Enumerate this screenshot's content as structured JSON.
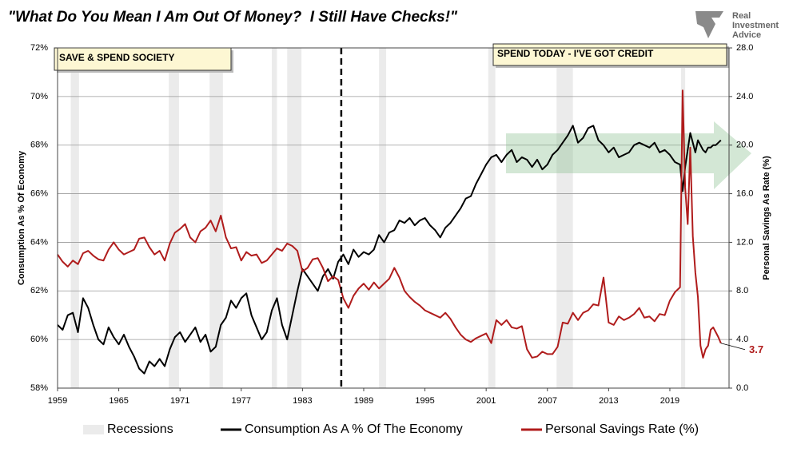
{
  "chart_data": {
    "type": "line",
    "title": "\"What Do You Mean I Am Out Of Money?  I Still Have Checks!\"",
    "logo": [
      "Real",
      "Investment",
      "Advice"
    ],
    "y_label": "Consumption As % Of Economy",
    "y2_label": "Personal Savings As Rate (%)",
    "annotations": [
      "SAVE & SPEND SOCIETY",
      "SPEND TODAY - I'VE GOT CREDIT"
    ],
    "divider_x": 1986.8,
    "xlim": [
      1959,
      2024.8
    ],
    "xticks": [
      1959,
      1965,
      1971,
      1977,
      1983,
      1989,
      1995,
      2001,
      2007,
      2013,
      2019
    ],
    "ylim": [
      58,
      72
    ],
    "yticks": [
      {
        "value": 58,
        "label": "58%"
      },
      {
        "value": 60,
        "label": "60%"
      },
      {
        "value": 62,
        "label": "62%"
      },
      {
        "value": 64,
        "label": "64%"
      },
      {
        "value": 66,
        "label": "66%"
      },
      {
        "value": 68,
        "label": "68%"
      },
      {
        "value": 70,
        "label": "70%"
      },
      {
        "value": 72,
        "label": "72%"
      }
    ],
    "y2lim": [
      0,
      28
    ],
    "y2ticks": [
      {
        "value": 0,
        "label": "0.0"
      },
      {
        "value": 4,
        "label": "4.0"
      },
      {
        "value": 8,
        "label": "8.0"
      },
      {
        "value": 12,
        "label": "12.0"
      },
      {
        "value": 16,
        "label": "16.0"
      },
      {
        "value": 20,
        "label": "20.0"
      },
      {
        "value": 24,
        "label": "24.0"
      },
      {
        "value": 28,
        "label": "28.0"
      }
    ],
    "grid": true,
    "legend": "bottom",
    "recessions": {
      "name": "Recessions",
      "color": "#ebebeb",
      "periods": [
        [
          1960.3,
          1961.1
        ],
        [
          1969.9,
          1970.9
        ],
        [
          1973.9,
          1975.2
        ],
        [
          1980.0,
          1980.5
        ],
        [
          1981.5,
          1982.9
        ],
        [
          1990.5,
          1991.2
        ],
        [
          2001.2,
          2001.9
        ],
        [
          2007.9,
          2009.5
        ],
        [
          2020.1,
          2020.5
        ]
      ]
    },
    "x": [
      1959,
      1959.5,
      1960,
      1960.5,
      1961,
      1961.5,
      1962,
      1962.5,
      1963,
      1963.5,
      1964,
      1964.5,
      1965,
      1965.5,
      1966,
      1966.5,
      1967,
      1967.5,
      1968,
      1968.5,
      1969,
      1969.5,
      1970,
      1970.5,
      1971,
      1971.5,
      1972,
      1972.5,
      1973,
      1973.5,
      1974,
      1974.5,
      1975,
      1975.5,
      1976,
      1976.5,
      1977,
      1977.5,
      1978,
      1978.5,
      1979,
      1979.5,
      1980,
      1980.5,
      1981,
      1981.5,
      1982,
      1982.5,
      1983,
      1983.5,
      1984,
      1984.5,
      1985,
      1985.5,
      1986,
      1986.5,
      1987,
      1987.5,
      1988,
      1988.5,
      1989,
      1989.5,
      1990,
      1990.5,
      1991,
      1991.5,
      1992,
      1992.5,
      1993,
      1993.5,
      1994,
      1994.5,
      1995,
      1995.5,
      1996,
      1996.5,
      1997,
      1997.5,
      1998,
      1998.5,
      1999,
      1999.5,
      2000,
      2000.5,
      2001,
      2001.5,
      2002,
      2002.5,
      2003,
      2003.5,
      2004,
      2004.5,
      2005,
      2005.5,
      2006,
      2006.5,
      2007,
      2007.5,
      2008,
      2008.5,
      2009,
      2009.5,
      2010,
      2010.5,
      2011,
      2011.5,
      2012,
      2012.5,
      2013,
      2013.5,
      2014,
      2014.5,
      2015,
      2015.5,
      2016,
      2016.5,
      2017,
      2017.5,
      2018,
      2018.5,
      2019,
      2019.5,
      2020,
      2020.25,
      2020.5,
      2020.75,
      2021,
      2021.25,
      2021.5,
      2021.75,
      2022,
      2022.25,
      2022.5,
      2022.75,
      2023,
      2023.25,
      2023.5,
      2023.75,
      2024
    ],
    "series": [
      {
        "name": "Consumption As A % Of The Economy",
        "color": "#000000",
        "axis": "y",
        "values": [
          60.6,
          60.4,
          61.0,
          61.1,
          60.3,
          61.7,
          61.3,
          60.6,
          60.0,
          59.8,
          60.5,
          60.1,
          59.8,
          60.2,
          59.7,
          59.3,
          58.8,
          58.6,
          59.1,
          58.9,
          59.2,
          58.9,
          59.6,
          60.1,
          60.3,
          59.9,
          60.2,
          60.5,
          59.9,
          60.2,
          59.5,
          59.7,
          60.6,
          60.9,
          61.6,
          61.3,
          61.7,
          61.9,
          61.0,
          60.5,
          60.0,
          60.3,
          61.2,
          61.7,
          60.6,
          60.0,
          61.0,
          62.0,
          62.9,
          62.6,
          62.3,
          62.0,
          62.6,
          62.9,
          62.5,
          63.2,
          63.5,
          63.1,
          63.7,
          63.4,
          63.6,
          63.5,
          63.7,
          64.3,
          64.0,
          64.4,
          64.5,
          64.9,
          64.8,
          65.0,
          64.7,
          64.9,
          65.0,
          64.7,
          64.5,
          64.2,
          64.6,
          64.8,
          65.1,
          65.4,
          65.8,
          65.9,
          66.4,
          66.8,
          67.2,
          67.5,
          67.6,
          67.3,
          67.6,
          67.8,
          67.3,
          67.5,
          67.4,
          67.1,
          67.4,
          67.0,
          67.2,
          67.6,
          67.8,
          68.1,
          68.4,
          68.8,
          68.1,
          68.3,
          68.7,
          68.8,
          68.2,
          68.0,
          67.7,
          67.9,
          67.5,
          67.6,
          67.7,
          68.0,
          68.1,
          68.0,
          67.9,
          68.1,
          67.7,
          67.8,
          67.6,
          67.3,
          67.2,
          66.1,
          67.1,
          67.8,
          68.5,
          68.1,
          67.7,
          68.2,
          68.0,
          67.8,
          67.7,
          67.9,
          67.9,
          68.0,
          68.0,
          68.1,
          68.2
        ]
      },
      {
        "name": "Personal Savings Rate (%)",
        "color": "#b01c1c",
        "axis": "y2",
        "end_label": 3.7,
        "values": [
          11.0,
          10.4,
          10.0,
          10.5,
          10.2,
          11.1,
          11.3,
          10.9,
          10.6,
          10.5,
          11.4,
          12.0,
          11.4,
          11.0,
          11.2,
          11.4,
          12.3,
          12.4,
          11.6,
          11.0,
          11.3,
          10.5,
          11.9,
          12.8,
          13.1,
          13.5,
          12.4,
          12.0,
          12.9,
          13.2,
          13.8,
          12.9,
          14.2,
          12.4,
          11.5,
          11.6,
          10.5,
          11.2,
          10.9,
          11.0,
          10.3,
          10.5,
          11.0,
          11.5,
          11.3,
          11.9,
          11.7,
          11.3,
          9.6,
          9.9,
          10.6,
          10.7,
          9.9,
          8.8,
          9.2,
          8.9,
          7.4,
          6.6,
          7.6,
          8.2,
          8.6,
          8.1,
          8.7,
          8.2,
          8.6,
          9.0,
          9.9,
          9.1,
          8.0,
          7.5,
          7.1,
          6.8,
          6.4,
          6.2,
          6.0,
          5.8,
          6.2,
          5.7,
          5.0,
          4.4,
          4.0,
          3.8,
          4.1,
          4.3,
          4.5,
          3.7,
          5.6,
          5.2,
          5.6,
          5.0,
          4.9,
          5.1,
          3.2,
          2.5,
          2.6,
          3.0,
          2.8,
          2.8,
          3.4,
          5.4,
          5.3,
          6.2,
          5.6,
          6.2,
          6.4,
          6.9,
          6.8,
          9.1,
          5.4,
          5.2,
          5.9,
          5.6,
          5.8,
          6.1,
          6.6,
          5.8,
          5.9,
          5.5,
          6.1,
          6.0,
          7.2,
          7.9,
          8.3,
          24.5,
          16.5,
          13.5,
          19.8,
          12.5,
          9.5,
          7.5,
          3.5,
          2.5,
          3.2,
          3.5,
          4.8,
          5.0,
          4.6,
          4.2,
          3.7
        ]
      }
    ]
  }
}
